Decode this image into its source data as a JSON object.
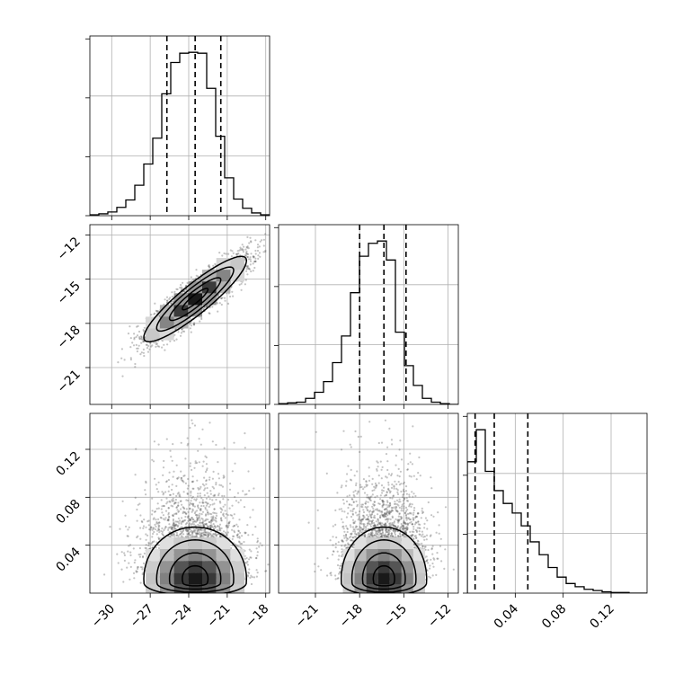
{
  "chart_data": [
    {
      "type": "histogram",
      "variable": "x",
      "range": [
        -31.7,
        -17.7
      ],
      "bin_width": 0.7,
      "counts": [
        1,
        2,
        4,
        9,
        17,
        33,
        56,
        84,
        132,
        166,
        176,
        177,
        176,
        138,
        86,
        41,
        18,
        8,
        3,
        1
      ],
      "quantiles": [
        -25.7,
        -23.5,
        -21.5
      ],
      "yticks_unlabeled": true,
      "grid": true
    },
    {
      "type": "histogram",
      "variable": "y",
      "range": [
        -23.5,
        -11.3
      ],
      "bin_width": 0.61,
      "counts": [
        1,
        2,
        3,
        8,
        16,
        30,
        55,
        90,
        147,
        195,
        212,
        215,
        190,
        95,
        51,
        25,
        8,
        3,
        1,
        0
      ],
      "quantiles": [
        -18.0,
        -16.35,
        -14.85
      ],
      "yticks_unlabeled": true,
      "grid": true
    },
    {
      "type": "histogram",
      "variable": "z",
      "range": [
        0.0,
        0.15
      ],
      "bin_width": 0.0075,
      "counts": [
        205,
        255,
        190,
        160,
        140,
        125,
        105,
        80,
        60,
        40,
        25,
        15,
        10,
        6,
        4,
        2,
        1,
        1,
        0,
        0
      ],
      "quantiles": [
        0.0065,
        0.0225,
        0.0505
      ],
      "yticks_unlabeled": true,
      "grid": true
    },
    {
      "type": "scatter-density",
      "x_variable": "x",
      "y_variable": "y",
      "xlim": [
        -31.7,
        -17.7
      ],
      "ylim": [
        -23.5,
        -11.3
      ],
      "center": [
        -23.5,
        -16.35
      ],
      "std": [
        2.0,
        1.45
      ],
      "correlation": 0.9,
      "yticks": [
        -21,
        -18,
        -15,
        -12
      ],
      "ytick_labels": [
        "−21",
        "−18",
        "−15",
        "−12"
      ],
      "grid": true
    },
    {
      "type": "scatter-density",
      "x_variable": "x",
      "y_variable": "z",
      "xlim": [
        -31.7,
        -17.7
      ],
      "ylim": [
        0.0,
        0.15
      ],
      "center": [
        -23.5,
        0.012
      ],
      "std": [
        2.0,
        0.03
      ],
      "correlation": 0.0,
      "xticks": [
        -30,
        -27,
        -24,
        -21,
        -18
      ],
      "xtick_labels": [
        "−30",
        "−27",
        "−24",
        "−21",
        "−18"
      ],
      "yticks": [
        0.04,
        0.08,
        0.12
      ],
      "ytick_labels": [
        "0.04",
        "0.08",
        "0.12"
      ],
      "grid": true
    },
    {
      "type": "scatter-density",
      "x_variable": "y",
      "y_variable": "z",
      "xlim": [
        -23.5,
        -11.3
      ],
      "ylim": [
        0.0,
        0.15
      ],
      "center": [
        -16.35,
        0.012
      ],
      "std": [
        1.45,
        0.03
      ],
      "correlation": 0.0,
      "xticks": [
        -21,
        -18,
        -15,
        -12
      ],
      "xtick_labels": [
        "−21",
        "−18",
        "−15",
        "−12"
      ],
      "grid": true
    },
    {
      "type": "histogram-axis",
      "variable": "z",
      "xticks": [
        0.04,
        0.08,
        0.12
      ],
      "xtick_labels": [
        "0.04",
        "0.08",
        "0.12"
      ]
    }
  ]
}
